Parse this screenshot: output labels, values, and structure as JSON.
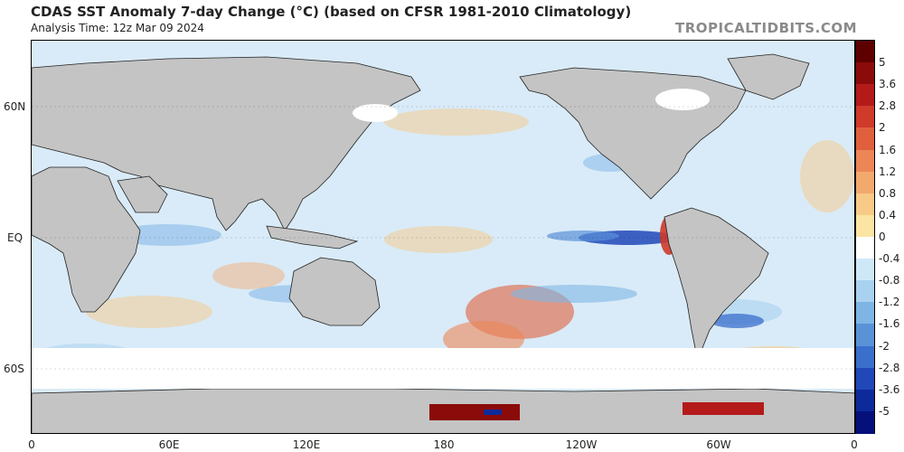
{
  "header": {
    "title": "CDAS SST Anomaly 7-day Change (°C) (based on CFSR 1981-2010 Climatology)",
    "subtitle": "Analysis Time: 12z Mar 09 2024",
    "credit": "TROPICALTIDBITS.COM"
  },
  "axes": {
    "x_ticks": [
      "0",
      "60E",
      "120E",
      "180",
      "120W",
      "60W",
      "0"
    ],
    "y_ticks": [
      "60N",
      "EQ",
      "60S"
    ]
  },
  "colorbar": {
    "labels": [
      "5",
      "3.6",
      "2.8",
      "2",
      "1.6",
      "1.2",
      "0.8",
      "0.4",
      "0",
      "-0.4",
      "-0.8",
      "-1.2",
      "-1.6",
      "-2",
      "-2.8",
      "-3.6",
      "-5"
    ],
    "colors": [
      "#5e0000",
      "#8b0b0b",
      "#b41a1a",
      "#cf3a2a",
      "#e0603e",
      "#ec8656",
      "#f3a96e",
      "#f8ca88",
      "#fbe4a4",
      "#ffffff",
      "#cfe8f8",
      "#a8d2f0",
      "#7fb5e5",
      "#5a92d8",
      "#3a6fcc",
      "#2048b8",
      "#0d2a9a",
      "#05107a"
    ]
  },
  "map_colors": {
    "land": "#c4c4c4",
    "ocean": "#d9ebf8",
    "ice": "#ffffff"
  }
}
